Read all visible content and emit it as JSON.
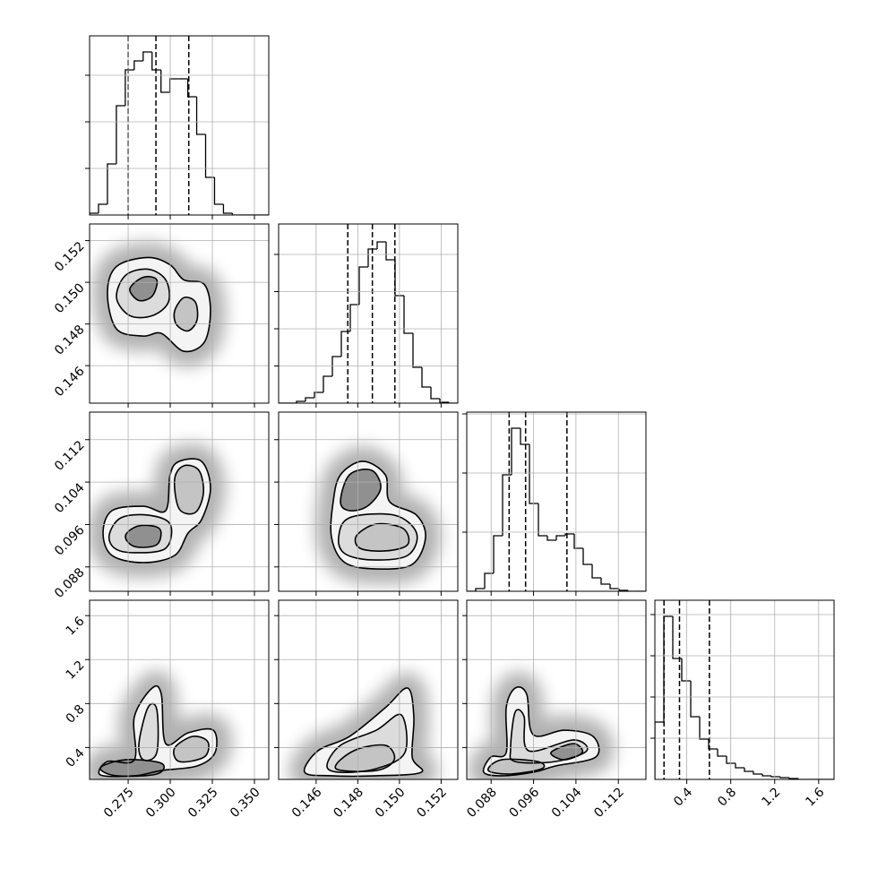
{
  "chart_data": {
    "type": "corner",
    "grid": true,
    "color": "#000000",
    "params": [
      {
        "lim": [
          0.2521,
          0.3585
        ],
        "ticks": [
          0.275,
          {
            "value": 0.3,
            "label": "0.300"
          },
          0.325,
          {
            "value": 0.35,
            "label": "0.350"
          }
        ]
      },
      {
        "lim": [
          0.1442,
          0.1528
        ],
        "ticks": [
          0.146,
          0.148,
          {
            "value": 0.15,
            "label": "0.150"
          },
          0.152
        ]
      },
      {
        "lim": [
          0.0834,
          0.1172
        ],
        "ticks": [
          0.088,
          0.096,
          0.104,
          0.112
        ]
      },
      {
        "lim": [
          0.11,
          1.74
        ],
        "ticks": [
          0.4,
          0.8,
          1.2,
          1.6
        ]
      }
    ],
    "hists": [
      {
        "bins": [
          0.2521,
          0.2574,
          0.2627,
          0.268,
          0.2733,
          0.2786,
          0.2839,
          0.2892,
          0.2945,
          0.2998,
          0.3051,
          0.3104,
          0.3157,
          0.321,
          0.3263,
          0.3316,
          0.3369,
          0.3422,
          0.3475,
          0.3528,
          0.3581
        ],
        "counts": [
          38,
          231,
          1096,
          2346,
          3115,
          3308,
          3500,
          3115,
          2635,
          2923,
          2923,
          2538,
          1731,
          808,
          231,
          38,
          0,
          0,
          0,
          0
        ],
        "ylim": [
          0,
          3846
        ],
        "yticks": [
          1000,
          2000,
          3000
        ],
        "quantiles": [
          0.275,
          0.2915,
          0.311
        ]
      },
      {
        "bins": [
          0.1442,
          0.14463,
          0.14506,
          0.14549,
          0.14592,
          0.14635,
          0.14678,
          0.14721,
          0.14764,
          0.14807,
          0.1485,
          0.14893,
          0.14936,
          0.14979,
          0.15022,
          0.15065,
          0.15108,
          0.15151,
          0.15194,
          0.15237,
          0.1528
        ],
        "counts": [
          0,
          0,
          48,
          145,
          289,
          723,
          1253,
          1928,
          2651,
          3663,
          4145,
          4337,
          3855,
          2892,
          1880,
          964,
          434,
          120,
          24,
          0
        ],
        "ylim": [
          0,
          4819
        ],
        "yticks": [
          1000,
          2000,
          3000,
          4000
        ],
        "quantiles": [
          0.14752,
          0.1487,
          0.14978
        ]
      },
      {
        "bins": [
          0.0834,
          0.08509,
          0.08678,
          0.08847,
          0.09016,
          0.09185,
          0.09354,
          0.09523,
          0.09692,
          0.09861,
          0.1003,
          0.10199,
          0.10368,
          0.10537,
          0.10706,
          0.10875,
          0.11044,
          0.11213,
          0.11382,
          0.11551,
          0.1172
        ],
        "counts": [
          0,
          91,
          606,
          1879,
          3939,
          5515,
          4970,
          2970,
          1879,
          1727,
          1879,
          1939,
          1455,
          909,
          455,
          242,
          91,
          30,
          0,
          0
        ],
        "ylim": [
          0,
          6061
        ],
        "yticks": [
          2000,
          4000,
          6000
        ],
        "quantiles": [
          0.0914,
          0.0945,
          0.1023
        ]
      },
      {
        "bins": [
          0.11,
          0.1915,
          0.273,
          0.3545,
          0.436,
          0.5175,
          0.599,
          0.6805,
          0.762,
          0.8435,
          0.925,
          1.0065,
          1.088,
          1.1695,
          1.251,
          1.3325,
          1.414,
          1.4955,
          1.577,
          1.6585,
          1.74
        ],
        "counts": [
          2783,
          7913,
          5870,
          4783,
          3043,
          1957,
          1478,
          1130,
          783,
          565,
          391,
          261,
          174,
          130,
          87,
          43,
          0,
          0,
          0,
          0
        ],
        "ylim": [
          0,
          8696
        ],
        "yticks": [
          2000,
          4000,
          6000,
          8000
        ],
        "quantiles": [
          0.193,
          0.334,
          0.606
        ]
      }
    ],
    "pairs": [
      {
        "contours": [
          {
            "x": [
              0.2627,
              0.2681,
              0.2867,
              0.2999,
              0.308,
              0.3202,
              0.3239,
              0.3202,
              0.308,
              0.2947,
              0.284,
              0.2681
            ],
            "y": [
              0.14947,
              0.15076,
              0.15119,
              0.15084,
              0.15012,
              0.1499,
              0.14862,
              0.14712,
              0.14669,
              0.14755,
              0.14742,
              0.14776
            ]
          },
          {
            "x": [
              0.2681,
              0.2734,
              0.2867,
              0.2973,
              0.2989,
              0.2893,
              0.276
            ],
            "y": [
              0.14926,
              0.15033,
              0.15063,
              0.15012,
              0.14905,
              0.1484,
              0.1484
            ]
          },
          {
            "x": [
              0.3026,
              0.308,
              0.3149,
              0.3159,
              0.3106,
              0.3037
            ],
            "y": [
              0.14862,
              0.14926,
              0.14905,
              0.14819,
              0.14767,
              0.14797
            ]
          },
          {
            "x": [
              0.276,
              0.284,
              0.292,
              0.2893,
              0.2813
            ],
            "y": [
              0.14969,
              0.15024,
              0.15012,
              0.14934,
              0.14913
            ]
          }
        ]
      },
      {
        "contours": [
          {
            "x": [
              0.2601,
              0.2654,
              0.284,
              0.2973,
              0.2999,
              0.3053,
              0.3186,
              0.3239,
              0.3186,
              0.3106,
              0.3026,
              0.284,
              0.2654
            ],
            "y": [
              0.09438,
              0.09861,
              0.09945,
              0.09861,
              0.10537,
              0.10791,
              0.10791,
              0.10283,
              0.09692,
              0.09438,
              0.09016,
              0.08881,
              0.09016
            ]
          },
          {
            "x": [
              0.2638,
              0.2707,
              0.2867,
              0.2999,
              0.2973,
              0.2787,
              0.267
            ],
            "y": [
              0.09405,
              0.09726,
              0.09777,
              0.09608,
              0.09151,
              0.09067,
              0.09151
            ]
          },
          {
            "x": [
              0.3026,
              0.308,
              0.317,
              0.3197,
              0.3149,
              0.3053
            ],
            "y": [
              0.10452,
              0.10706,
              0.10621,
              0.10199,
              0.09827,
              0.09895
            ]
          },
          {
            "x": [
              0.2734,
              0.2813,
              0.2936,
              0.292,
              0.2787
            ],
            "y": [
              0.09388,
              0.09574,
              0.09523,
              0.09219,
              0.09185
            ]
          }
        ]
      },
      {
        "contours": [
          {
            "x": [
              0.14674,
              0.14682,
              0.14717,
              0.14824,
              0.14932,
              0.14953,
              0.15082,
              0.15125,
              0.15061,
              0.14889,
              0.14738
            ],
            "y": [
              0.09354,
              0.1003,
              0.10537,
              0.10791,
              0.10537,
              0.1003,
              0.09776,
              0.09354,
              0.08847,
              0.08762,
              0.08881
            ]
          },
          {
            "x": [
              0.14708,
              0.1476,
              0.14975,
              0.15082,
              0.15039,
              0.14867,
              0.14738
            ],
            "y": [
              0.09354,
              0.09726,
              0.09777,
              0.09438,
              0.09016,
              0.08932,
              0.0905
            ]
          },
          {
            "x": [
              0.14794,
              0.14889,
              0.15018,
              0.15039,
              0.14932,
              0.14811
            ],
            "y": [
              0.09388,
              0.09608,
              0.09523,
              0.09219,
              0.09101,
              0.09151
            ]
          },
          {
            "x": [
              0.14717,
              0.1476,
              0.14867,
              0.1491,
              0.14846,
              0.1476
            ],
            "y": [
              0.1003,
              0.10537,
              0.10621,
              0.10283,
              0.09945,
              0.09861
            ]
          }
        ]
      },
      {
        "contours": [
          {
            "x": [
              0.2585,
              0.2627,
              0.2787,
              0.2787,
              0.2893,
              0.2947,
              0.2973,
              0.3106,
              0.3255,
              0.3266,
              0.3159,
              0.2947,
              0.2787
            ],
            "y": [
              0.151,
              0.273,
              0.289,
              0.681,
              0.941,
              0.884,
              0.436,
              0.534,
              0.558,
              0.354,
              0.232,
              0.191,
              0.143
            ]
          },
          {
            "x": [
              0.2814,
              0.2867,
              0.292,
              0.292,
              0.284
            ],
            "y": [
              0.436,
              0.762,
              0.746,
              0.354,
              0.289
            ]
          },
          {
            "x": [
              0.3026,
              0.3133,
              0.3223,
              0.3202,
              0.3053
            ],
            "y": [
              0.395,
              0.501,
              0.452,
              0.314,
              0.273
            ]
          },
          {
            "x": [
              0.2585,
              0.2734,
              0.2947,
              0.292,
              0.2681
            ],
            "y": [
              0.216,
              0.289,
              0.257,
              0.159,
              0.143
            ]
          }
        ]
      },
      {
        "contours": [
          {
            "x": [
              0.14545,
              0.14609,
              0.1476,
              0.14932,
              0.15039,
              0.15069,
              0.15061,
              0.15104,
              0.14889,
              0.14674
            ],
            "y": [
              0.175,
              0.371,
              0.501,
              0.762,
              0.941,
              0.681,
              0.314,
              0.175,
              0.143,
              0.143
            ]
          },
          {
            "x": [
              0.14652,
              0.14717,
              0.14889,
              0.15009,
              0.15026,
              0.14889,
              0.14717
            ],
            "y": [
              0.232,
              0.42,
              0.558,
              0.697,
              0.354,
              0.208,
              0.175
            ]
          },
          {
            "x": [
              0.14695,
              0.14781,
              0.14932,
              0.14975,
              0.14889
            ],
            "y": [
              0.208,
              0.371,
              0.42,
              0.289,
              0.191
            ]
          }
        ]
      },
      {
        "contours": [
          {
            "x": [
              0.08661,
              0.08796,
              0.09084,
              0.09084,
              0.09253,
              0.09472,
              0.09591,
              0.10182,
              0.10723,
              0.10774,
              0.10013,
              0.09591,
              0.08999
            ],
            "y": [
              0.175,
              0.314,
              0.354,
              0.762,
              0.941,
              0.884,
              0.518,
              0.558,
              0.501,
              0.314,
              0.232,
              0.175,
              0.143
            ]
          },
          {
            "x": [
              0.09168,
              0.09253,
              0.09422,
              0.09506,
              0.10351,
              0.10605,
              0.10013,
              0.09253
            ],
            "y": [
              0.395,
              0.722,
              0.681,
              0.371,
              0.469,
              0.371,
              0.273,
              0.273
            ]
          },
          {
            "x": [
              0.08746,
              0.08999,
              0.09675,
              0.0976,
              0.09168
            ],
            "y": [
              0.191,
              0.289,
              0.273,
              0.208,
              0.159
            ]
          },
          {
            "x": [
              0.09929,
              0.10351,
              0.1052,
              0.10182
            ],
            "y": [
              0.354,
              0.436,
              0.354,
              0.289
            ]
          }
        ]
      }
    ]
  }
}
